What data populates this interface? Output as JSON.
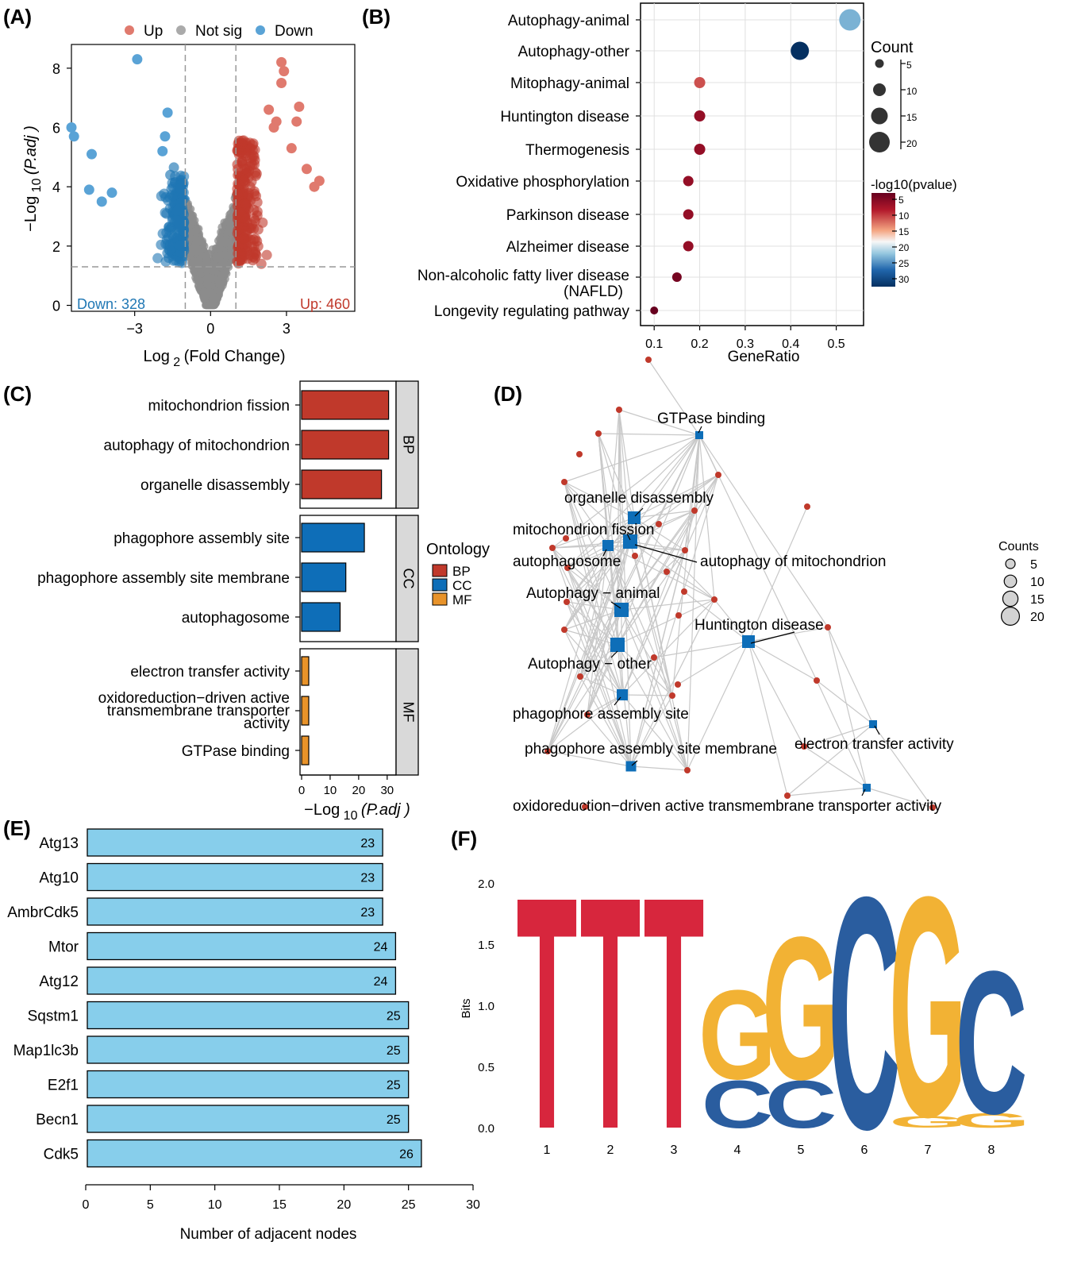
{
  "panel_labels": [
    "(A)",
    "(B)",
    "(C)",
    "(D)",
    "(E)",
    "(F)"
  ],
  "colors": {
    "up": "#c0392b",
    "up_light": "#e07a6e",
    "down": "#1f77b4",
    "down_light": "#5aa3d6",
    "not_sig": "#8c8c8c",
    "bp": "#c0392b",
    "cc": "#0e6eb8",
    "mf": "#e8932a",
    "bar_e": "#87ceeb",
    "logo_T": "#d7263d",
    "logo_G": "#f2b234",
    "logo_C": "#2a5d9f",
    "edge": "#c8c8c8",
    "gene_node": "#c0392b",
    "term_node": "#0e6eb8"
  },
  "chart_data": [
    {
      "panel": "A",
      "type": "scatter",
      "title": "",
      "xlabel_main": "Log",
      "xlabel_sub": "2",
      "xlabel_rest": "(Fold  Change)",
      "ylabel_main": "−Log",
      "ylabel_sub": "10",
      "ylabel_rest": "(P.adj )",
      "xlim": [
        -5.5,
        5.7
      ],
      "ylim": [
        -0.2,
        8.8
      ],
      "xticks": [
        -3,
        0,
        3
      ],
      "yticks": [
        0,
        2,
        4,
        6,
        8
      ],
      "fc_threshold": [
        -1,
        1
      ],
      "padj_threshold": 1.3,
      "legend": {
        "position": "top",
        "items": [
          "Up",
          "Not sig",
          "Down"
        ]
      },
      "down_count_label": "Down: 328",
      "up_count_label": "Up: 460",
      "outliers_down": [
        [
          -5.5,
          6.0
        ],
        [
          -5.4,
          5.7
        ],
        [
          -4.7,
          5.1
        ],
        [
          -4.8,
          3.9
        ],
        [
          -4.3,
          3.5
        ],
        [
          -3.9,
          3.8
        ],
        [
          -2.9,
          8.3
        ],
        [
          -1.7,
          6.5
        ],
        [
          -1.8,
          5.7
        ],
        [
          -1.9,
          5.2
        ]
      ],
      "outliers_up": [
        [
          2.8,
          8.2
        ],
        [
          2.9,
          7.9
        ],
        [
          2.8,
          7.5
        ],
        [
          3.5,
          6.7
        ],
        [
          3.4,
          6.2
        ],
        [
          2.6,
          6.2
        ],
        [
          4.1,
          4.0
        ],
        [
          4.3,
          4.2
        ],
        [
          3.8,
          4.6
        ],
        [
          3.2,
          5.3
        ],
        [
          2.3,
          6.6
        ],
        [
          2.5,
          6.0
        ]
      ]
    },
    {
      "panel": "B",
      "type": "scatter",
      "xlabel": "GeneRatio",
      "xlim": [
        0.07,
        0.56
      ],
      "xticks": [
        0.1,
        0.2,
        0.3,
        0.4,
        0.5
      ],
      "categories": [
        "Autophagy-animal",
        "Autophagy-other",
        "Mitophagy-animal",
        "Huntington disease",
        "Thermogenesis",
        "Oxidative phosphorylation",
        "Parkinson disease",
        "Alzheimer disease",
        "Non-alcoholic fatty liver disease (NAFLD)",
        "Longevity regulating pathway"
      ],
      "category_lines": [
        [
          "Autophagy-animal"
        ],
        [
          "Autophagy-other"
        ],
        [
          "Mitophagy-animal"
        ],
        [
          "Huntington disease"
        ],
        [
          "Thermogenesis"
        ],
        [
          "Oxidative phosphorylation"
        ],
        [
          "Parkinson disease"
        ],
        [
          "Alzheimer disease"
        ],
        [
          "Non-alcoholic fatty liver disease",
          "(NAFLD)"
        ],
        [
          "Longevity regulating pathway"
        ]
      ],
      "gene_ratio": [
        0.53,
        0.42,
        0.2,
        0.2,
        0.2,
        0.175,
        0.175,
        0.175,
        0.15,
        0.1
      ],
      "count": [
        21,
        17,
        8,
        8,
        8,
        7,
        7,
        7,
        6,
        4
      ],
      "neg_log10_pvalue": [
        24,
        33,
        10,
        6,
        6,
        6,
        6,
        6,
        4,
        3
      ],
      "size_legend": {
        "title": "Count",
        "values": [
          5,
          10,
          15,
          20
        ]
      },
      "color_legend": {
        "title": "-log10(pvalue)",
        "ticks": [
          5,
          10,
          15,
          20,
          25,
          30
        ]
      }
    },
    {
      "panel": "C",
      "type": "bar",
      "orientation": "horizontal",
      "xlabel_main": "−Log",
      "xlabel_sub": "10",
      "xlabel_rest": "(P.adj )",
      "xlim": [
        0,
        32
      ],
      "xticks": [
        0,
        10,
        20,
        30
      ],
      "categories": [
        "mitochondrion fission",
        "autophagy of mitochondrion",
        "organelle disassembly",
        "phagophore assembly site",
        "phagophore assembly site membrane",
        "autophagosome",
        "electron transfer activity",
        "oxidoreduction−driven active transmembrane transporter activity",
        "GTPase binding"
      ],
      "category_lines": [
        [
          "mitochondrion fission"
        ],
        [
          "autophagy of mitochondrion"
        ],
        [
          "organelle disassembly"
        ],
        [
          "phagophore assembly site"
        ],
        [
          "phagophore assembly site membrane"
        ],
        [
          "autophagosome"
        ],
        [
          "electron transfer activity"
        ],
        [
          "oxidoreduction−driven active",
          "transmembrane transporter",
          "activity"
        ],
        [
          "GTPase binding"
        ]
      ],
      "values": [
        30.5,
        30.5,
        28,
        22,
        15.5,
        13.5,
        2.5,
        2.5,
        2.5
      ],
      "groups": [
        "BP",
        "BP",
        "BP",
        "CC",
        "CC",
        "CC",
        "MF",
        "MF",
        "MF"
      ],
      "facets": [
        "BP",
        "CC",
        "MF"
      ],
      "legend": {
        "title": "Ontology",
        "items": [
          "BP",
          "CC",
          "MF"
        ]
      }
    },
    {
      "panel": "D",
      "type": "diagram",
      "term_labels": [
        "GTPase binding",
        "organelle disassembly",
        "mitochondrion fission",
        "autophagosome",
        "autophagy of mitochondrion",
        "Autophagy − animal",
        "Huntington disease",
        "Autophagy − other",
        "phagophore assembly site",
        "phagophore assembly site membrane",
        "electron transfer activity",
        "oxidoreduction−driven active transmembrane transporter activity"
      ],
      "size_legend": {
        "title": "Counts",
        "values": [
          5,
          10,
          15,
          20
        ]
      }
    },
    {
      "panel": "E",
      "type": "bar",
      "orientation": "horizontal",
      "xlabel": "Number of adjacent nodes",
      "xlim": [
        0,
        30
      ],
      "xticks": [
        0,
        5,
        10,
        15,
        20,
        25,
        30
      ],
      "categories": [
        "Atg13",
        "Atg10",
        "AmbrCdk5",
        "Mtor",
        "Atg12",
        "Sqstm1",
        "Map1lc3b",
        "E2f1",
        "Becn1",
        "Cdk5"
      ],
      "values": [
        23,
        23,
        23,
        24,
        24,
        25,
        25,
        25,
        25,
        26
      ]
    },
    {
      "panel": "F",
      "type": "bar",
      "subtype": "sequence-logo",
      "ylabel": "Bits",
      "ylim": [
        0,
        2.0
      ],
      "yticks": [
        "0.0",
        "0.5",
        "1.0",
        "1.5",
        "2.0"
      ],
      "positions": [
        "1",
        "2",
        "3",
        "4",
        "5",
        "6",
        "7",
        "8"
      ],
      "letters": [
        [
          {
            "letter": "T",
            "bits": 1.95
          }
        ],
        [
          {
            "letter": "T",
            "bits": 1.95
          }
        ],
        [
          {
            "letter": "T",
            "bits": 1.95
          }
        ],
        [
          {
            "letter": "C",
            "bits": 0.4
          },
          {
            "letter": "G",
            "bits": 0.75
          }
        ],
        [
          {
            "letter": "C",
            "bits": 0.4
          },
          {
            "letter": "G",
            "bits": 1.2
          }
        ],
        [
          {
            "letter": "C",
            "bits": 1.95
          }
        ],
        [
          {
            "letter": "G",
            "bits": 0.1
          },
          {
            "letter": "G",
            "bits": 1.85
          }
        ],
        [
          {
            "letter": "G",
            "bits": 0.12
          },
          {
            "letter": "C",
            "bits": 1.2
          }
        ]
      ]
    }
  ]
}
